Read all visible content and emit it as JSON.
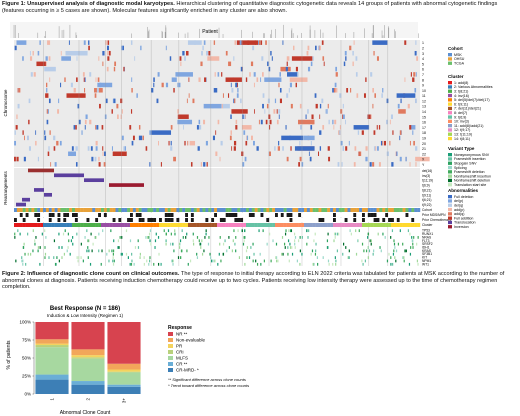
{
  "figure1": {
    "title": "Figure 1: Unsupervised analysis of diagnostic modal karyotypes.",
    "caption": "Hierarchical clustering of quantitative diagnostic cytogenetic data reveals 14 groups of patients with abnormal cytogenetic findings (features occurring in ≥ 5 cases are shown). Molecular features significantly enriched in any cluster are also shown.",
    "top_label": "Patient",
    "y_label_chromosome": "Chromosome",
    "y_label_rearrangements": "Rearrangements",
    "chromosome_labels": [
      "1",
      "2",
      "3",
      "4",
      "5",
      "6",
      "7",
      "8",
      "9",
      "10",
      "11",
      "12",
      "13",
      "14",
      "15",
      "16",
      "17",
      "18",
      "19",
      "20",
      "21",
      "22",
      "X",
      "Y"
    ],
    "rearrangement_labels": [
      "del(16)",
      "inv(3)",
      "t(11;19)",
      "t(6;9)",
      "t(8;21)",
      "t(9;11)",
      "t(6;21)",
      "t(9;22)"
    ],
    "annotation_labels": [
      "Cohort",
      "Prior MDS/MPN",
      "Prior Chemotherapy",
      "Cluster"
    ],
    "gene_labels": [
      "TP53",
      "RUNX1",
      "NRAS",
      "FLT3",
      "SRSF2",
      "IDH1",
      "KRAS",
      "SF3B1",
      "KIT",
      "NPM1",
      "WT1"
    ],
    "legend": {
      "cohort": {
        "title": "Cohort",
        "items": [
          "MSK",
          "OHSU",
          "TCGA"
        ],
        "colors": [
          "#5b8fd1",
          "#e8a23a",
          "#6bbf6b"
        ]
      },
      "cluster": {
        "title": "Cluster",
        "items": [
          "1: add(8)",
          "2: Various Abnormalities",
          "3: t(8;21)",
          "4: inv(16)",
          "5: del(5)/del(7)/del(17)",
          "6: t(9;11)",
          "7: del(11)/del(21)",
          "8: del(7)",
          "9: t(6;9)",
          "10: inv(3)",
          "11: add(8)/add(21)",
          "12: t(9;17)",
          "13: t(11;19)",
          "14: t(8;11)"
        ],
        "colors": [
          "#e41a1c",
          "#377eb8",
          "#4daf4a",
          "#984ea3",
          "#ff7f00",
          "#ffdb33",
          "#a65628",
          "#f781bf",
          "#66c2a5",
          "#fc8d62",
          "#8da0cb",
          "#e78ac3",
          "#a6d854",
          "#ffd92f"
        ]
      },
      "variant": {
        "title": "Variant Type",
        "items": [
          "Nonsynonymous SNV",
          "Frameshift insertion",
          "Stopgain SNV",
          "Splicing",
          "Frameshift deletion",
          "Nonframeshift insertion",
          "Nonframeshift deletion",
          "Translation start site"
        ],
        "colors": [
          "#1b9e77",
          "#66c2a5",
          "#2ca25f",
          "#99d8c9",
          "#41ab5d",
          "#a1d99b",
          "#006d2c",
          "#c7e9c0"
        ]
      },
      "abnormalities": {
        "title": "Abnormalities",
        "items": [
          "Full deletion",
          "del(p)",
          "del(q)",
          "add(p)",
          "add(q)",
          "Full addition",
          "Translocation",
          "Inversion"
        ],
        "colors": [
          "#3a6bc4",
          "#7fa6e0",
          "#b8cde9",
          "#f2b8a8",
          "#e07a5f",
          "#c0392b",
          "#5b3f9e",
          "#9b1b30"
        ]
      }
    }
  },
  "figure2": {
    "title": "Figure 2: Influence of diagnostic clone count on clinical outcomes.",
    "caption": "The type of response to initial therapy according to ELN 2022 criteria was tabulated for patients at MSK according to the number of abnormal clones at diagnosis. Patients receiving induction chemotherapy could receive up to two cycles. Patients receiving low intensity therapy were assessed up to the time of chemotherapy regimen completion."
  },
  "chart_data": {
    "type": "bar",
    "title": "Best Response (N = 186)",
    "subtitle": "Induction & Low Intensity (Regimen 1)",
    "xlabel": "Abnormal Clone Count",
    "ylabel": "% of patients",
    "categories": [
      "1",
      "2",
      "3+"
    ],
    "ylim": [
      0,
      100
    ],
    "yticks": [
      "0%",
      "25%",
      "50%",
      "75%",
      "100%"
    ],
    "legend_title": "Response",
    "notes": [
      "** Significant difference across clone counts",
      "* Trend toward difference across clone counts"
    ],
    "series": [
      {
        "name": "CR-MRD- *",
        "color": "#3d7fb6",
        "values": [
          20,
          13,
          10
        ]
      },
      {
        "name": "CR **",
        "color": "#6aaed6",
        "values": [
          7,
          5,
          3
        ]
      },
      {
        "name": "MLFS",
        "color": "#a7d8a0",
        "values": [
          38,
          31,
          17
        ]
      },
      {
        "name": "CRi",
        "color": "#b8d17c",
        "values": [
          3,
          2,
          1
        ]
      },
      {
        "name": "PR",
        "color": "#f4d35e",
        "values": [
          2,
          3,
          3
        ]
      },
      {
        "name": "Non-evaluable",
        "color": "#f2a65a",
        "values": [
          6,
          8,
          8
        ]
      },
      {
        "name": "NR **",
        "color": "#d7434f",
        "values": [
          24,
          38,
          58
        ]
      }
    ]
  }
}
